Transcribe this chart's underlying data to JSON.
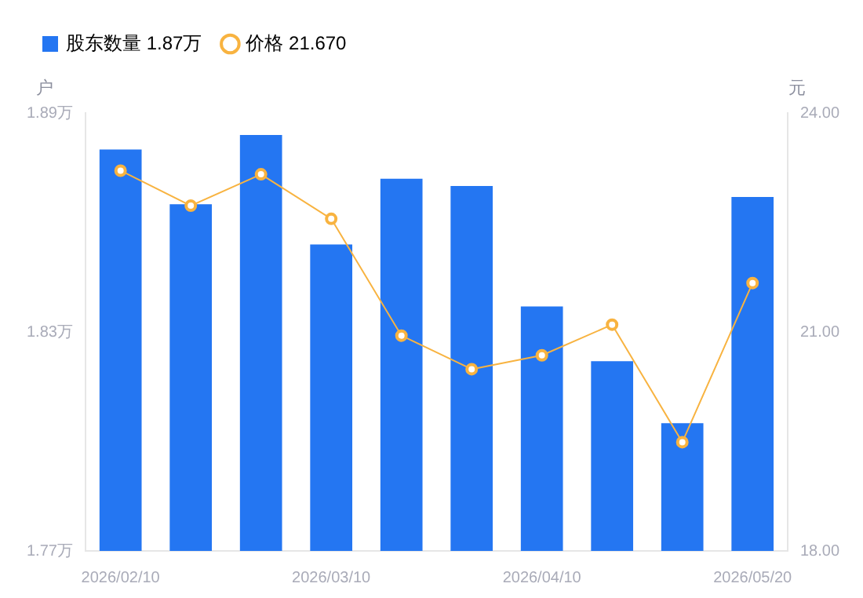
{
  "chart_data": {
    "type": "bar",
    "ylabel": "户",
    "y2label": "元",
    "categories": [
      "2026/02/10",
      null,
      null,
      "2026/03/10",
      null,
      null,
      "2026/04/10",
      null,
      null,
      "2026/05/20"
    ],
    "series": [
      {
        "name": "股东数量 1.87万",
        "color": "#2476f2",
        "values": [
          1.88,
          1.865,
          1.884,
          1.854,
          1.872,
          1.87,
          1.837,
          1.822,
          1.805,
          1.867
        ]
      },
      {
        "name": "价格 21.670",
        "type": "line",
        "axis": "y2",
        "color": "#f8b340",
        "marker": "circle",
        "values": [
          23.21,
          22.73,
          23.16,
          22.55,
          20.95,
          20.49,
          20.68,
          21.1,
          19.49,
          21.67
        ]
      }
    ],
    "ylim": [
      1.77,
      1.89
    ],
    "yticks": [
      {
        "value": 1.77,
        "label": "1.77万"
      },
      {
        "value": 1.83,
        "label": "1.83万"
      },
      {
        "value": 1.89,
        "label": "1.89万"
      }
    ],
    "y2lim": [
      18,
      24
    ],
    "y2ticks": [
      {
        "value": 18,
        "label": "18.00"
      },
      {
        "value": 21,
        "label": "21.00"
      },
      {
        "value": 24,
        "label": "24.00"
      }
    ],
    "grid": false,
    "legend": "top left"
  }
}
